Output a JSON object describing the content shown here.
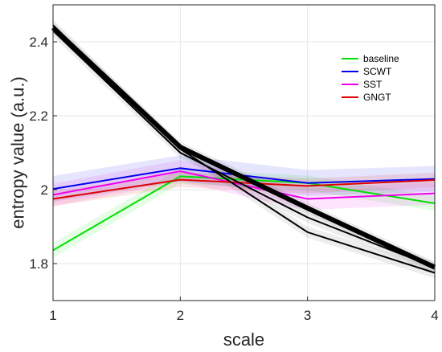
{
  "chart_data": {
    "type": "line",
    "xlabel": "scale",
    "ylabel": "entropy value (a.u.)",
    "xlim": [
      1,
      4
    ],
    "ylim": [
      1.7,
      2.5
    ],
    "xticks": [
      1,
      2,
      3,
      4
    ],
    "yticks": [
      1.8,
      2,
      2.2,
      2.4
    ],
    "ytick_labels": [
      "1.8",
      "2",
      "2.2",
      "2.4"
    ],
    "grid": true,
    "legend_position": "top-right",
    "x": [
      1,
      2,
      3,
      4
    ],
    "series": [
      {
        "name": "baseline",
        "color": "#00e000",
        "values": [
          1.836,
          2.036,
          2.018,
          1.963
        ],
        "band": 0.02
      },
      {
        "name": "SCWT",
        "color": "#0000ee",
        "values": [
          2.002,
          2.058,
          2.018,
          2.029
        ],
        "band": 0.035
      },
      {
        "name": "SST",
        "color": "#ee00ee",
        "values": [
          1.986,
          2.05,
          1.975,
          1.99
        ],
        "band": 0.03
      },
      {
        "name": "GNGT",
        "color": "#e00000",
        "values": [
          1.975,
          2.027,
          2.01,
          2.026
        ],
        "band": 0.02
      }
    ],
    "unlabeled_black_lines": [
      {
        "color": "#000000",
        "width": 6,
        "values": [
          2.438,
          2.115,
          1.95,
          1.79
        ]
      },
      {
        "color": "#000000",
        "width": 2,
        "values": [
          2.445,
          2.11,
          1.885,
          1.775
        ]
      },
      {
        "color": "#000000",
        "width": 2,
        "values": [
          2.43,
          2.1,
          1.925,
          1.79
        ]
      }
    ],
    "gray_band_half_width": 0.015
  }
}
